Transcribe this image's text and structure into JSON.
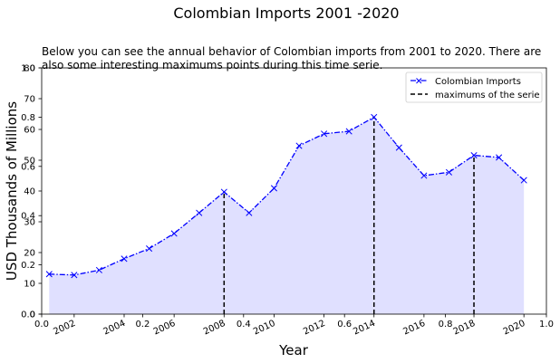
{
  "chart_data": {
    "type": "line",
    "title": "Colombian Imports 2001 -2020",
    "subtitle_lines": [
      "Below you can see the annual behavior of Colombian imports from 2001 to 2020. There are",
      "also some interesting maximums points during this time serie."
    ],
    "xlabel": "Year",
    "ylabel": "USD Thousands of Millions",
    "xlim": [
      2000.7,
      2020.9
    ],
    "ylim": [
      0,
      80
    ],
    "x_ticks": [
      "2002",
      "2004",
      "2006",
      "2008",
      "2010",
      "2012",
      "2014",
      "2016",
      "2018",
      "2020"
    ],
    "y_ticks": [
      "0",
      "10",
      "20",
      "30",
      "40",
      "50",
      "60",
      "70",
      "80"
    ],
    "overlay_axis": {
      "x_ticks": [
        "0.0",
        "0.2",
        "0.4",
        "0.6",
        "0.8",
        "1.0"
      ],
      "y_ticks": [
        "0.0",
        "0.2",
        "0.4",
        "0.6",
        "0.8",
        "1.0"
      ]
    },
    "series": [
      {
        "name": "Colombian Imports",
        "color": "#0000ff",
        "fill_color": "#e0e0ff",
        "line_style": "dash-dot",
        "marker": "x",
        "x": [
          2001,
          2002,
          2003,
          2004,
          2005,
          2006,
          2007,
          2008,
          2009,
          2010,
          2011,
          2012,
          2013,
          2014,
          2015,
          2016,
          2017,
          2018,
          2019,
          2020
        ],
        "values": [
          13.0,
          12.7,
          14.3,
          18.0,
          21.3,
          26.2,
          32.9,
          39.7,
          32.9,
          40.9,
          54.7,
          58.6,
          59.4,
          64.0,
          54.1,
          45.0,
          46.1,
          51.6,
          50.9,
          43.5
        ]
      }
    ],
    "maximums": {
      "name": "maximums of the serie",
      "color": "#000000",
      "line_style": "dashed",
      "x": [
        2008,
        2014,
        2018
      ],
      "values": [
        39.7,
        64.0,
        51.6
      ]
    },
    "legend_position": "top-right",
    "grid": false
  }
}
